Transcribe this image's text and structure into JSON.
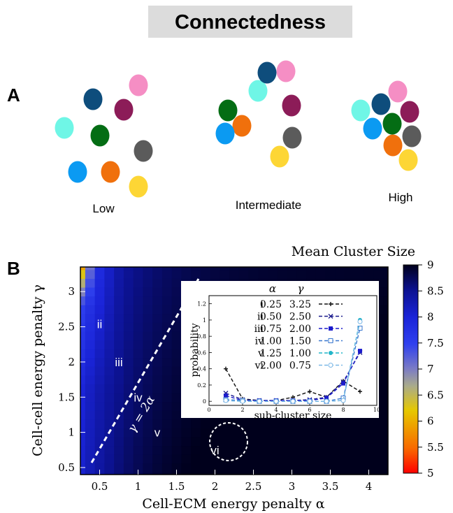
{
  "panel_a": {
    "label": "A",
    "title": "Connectedness",
    "title_bg": "#dcdcdc",
    "groups": [
      {
        "label": "Low"
      },
      {
        "label": "Intermediate"
      },
      {
        "label": "High"
      }
    ],
    "cell_colors": {
      "cyan": "#6ff6e6",
      "navy": "#0e4d7c",
      "pink": "#f58ec4",
      "magenta": "#8c1c58",
      "green": "#046d14",
      "gray": "#5b5b5b",
      "blue": "#0b9af2",
      "orange": "#f0700c",
      "yellow": "#fdd635"
    }
  },
  "panel_b": {
    "label": "B",
    "colorbar": {
      "title": "Mean Cluster Size",
      "range": [
        5,
        9
      ],
      "ticks": [
        "9",
        "8.5",
        "8",
        "7.5",
        "7",
        "6.5",
        "6",
        "5.5",
        "5"
      ]
    },
    "heatmap": {
      "xlabel": "Cell-ECM energy penalty α",
      "ylabel": "Cell-cell energy penalty γ",
      "xlim": [
        0.25,
        4.25
      ],
      "ylim": [
        0.4,
        3.35
      ],
      "xticks": [
        "0.5",
        "1",
        "1.5",
        "2",
        "2.5",
        "3",
        "3.5",
        "4"
      ],
      "yticks": [
        "0.5",
        "1",
        "1.5",
        "2",
        "2.5",
        "3"
      ],
      "line_label": "γ = 2α",
      "region_labels": [
        {
          "text": "i",
          "alpha": 0.25,
          "gamma": 3.25
        },
        {
          "text": "ii",
          "alpha": 0.5,
          "gamma": 2.5
        },
        {
          "text": "iii",
          "alpha": 0.75,
          "gamma": 2.0
        },
        {
          "text": "iv",
          "alpha": 1.0,
          "gamma": 1.5
        },
        {
          "text": "v",
          "alpha": 1.25,
          "gamma": 1.0
        },
        {
          "text": "vi",
          "alpha": 2.0,
          "gamma": 0.75
        }
      ]
    },
    "chart_data": {
      "type": "line",
      "xlabel": "sub-cluster size",
      "ylabel": "probability",
      "xlim": [
        0,
        10
      ],
      "ylim": [
        -0.05,
        1.3
      ],
      "xticks": [
        "0",
        "2",
        "4",
        "6",
        "8",
        "10"
      ],
      "yticks": [
        "0",
        "0.2",
        "0.4",
        "0.6",
        "0.8",
        "1",
        "1.2"
      ],
      "legend_headers": [
        "α",
        "γ"
      ],
      "x": [
        1,
        2,
        3,
        4,
        5,
        6,
        7,
        8,
        9
      ],
      "series": [
        {
          "name": "i",
          "alpha": "0.25",
          "gamma": "3.25",
          "color": "#111111",
          "marker": "plus",
          "values": [
            0.4,
            0.03,
            0.01,
            0.01,
            0.05,
            0.12,
            0.05,
            0.25,
            0.12
          ]
        },
        {
          "name": "ii",
          "alpha": "0.50",
          "gamma": "2.50",
          "color": "#1a1a8c",
          "marker": "x",
          "values": [
            0.1,
            0.02,
            0.01,
            0.01,
            0.01,
            0.02,
            0.05,
            0.24,
            0.6
          ]
        },
        {
          "name": "iii",
          "alpha": "0.75",
          "gamma": "2.00",
          "color": "#1c1ccc",
          "marker": "filled-square",
          "values": [
            0.07,
            0.01,
            0.01,
            0.01,
            0.01,
            0.01,
            0.04,
            0.22,
            0.62
          ]
        },
        {
          "name": "iv",
          "alpha": "1.00",
          "gamma": "1.50",
          "color": "#3a78cf",
          "marker": "open-square",
          "values": [
            0.02,
            0.01,
            0.0,
            0.0,
            0.0,
            0.0,
            0.0,
            0.04,
            0.9
          ]
        },
        {
          "name": "v",
          "alpha": "1.25",
          "gamma": "1.00",
          "color": "#22b5c8",
          "marker": "filled-circle",
          "values": [
            0.01,
            0.0,
            0.0,
            0.0,
            0.0,
            0.0,
            0.0,
            0.01,
            1.0
          ]
        },
        {
          "name": "vi",
          "alpha": "2.00",
          "gamma": "0.75",
          "color": "#7ab7e6",
          "marker": "open-circle",
          "values": [
            0.01,
            0.0,
            0.0,
            0.0,
            0.0,
            0.0,
            0.0,
            0.01,
            0.98
          ]
        }
      ]
    }
  }
}
